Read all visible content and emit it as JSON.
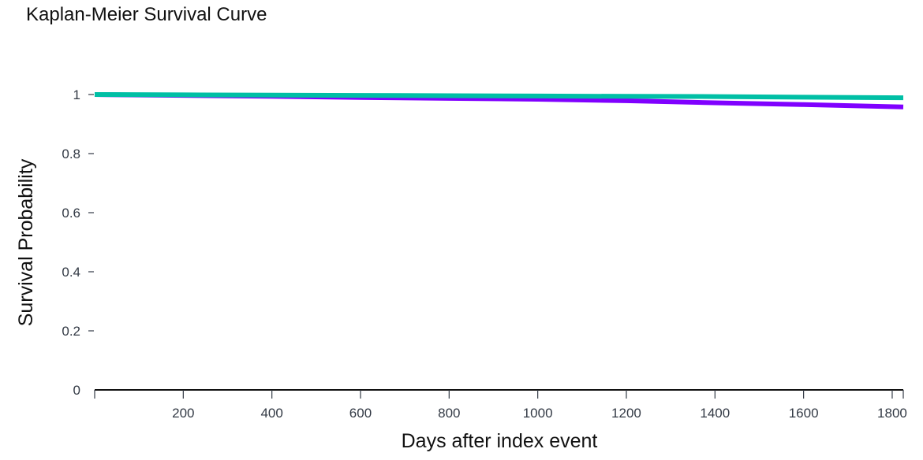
{
  "chart_data": {
    "type": "line",
    "title": "Kaplan-Meier Survival Curve",
    "xlabel": "Days after index event",
    "ylabel": "Survival Probability",
    "xlim": [
      0,
      1825
    ],
    "ylim": [
      0,
      1
    ],
    "x_ticks": [
      200,
      400,
      600,
      800,
      1000,
      1200,
      1400,
      1600,
      1800
    ],
    "y_ticks": [
      0,
      0.2,
      0.4,
      0.6,
      0.8,
      1
    ],
    "y_tick_labels": [
      "0",
      "0.2",
      "0.4",
      "0.6",
      "0.8",
      "1"
    ],
    "grid": false,
    "legend": "none",
    "series": [
      {
        "color": "#8000ff",
        "x": [
          0,
          200,
          400,
          600,
          800,
          1000,
          1200,
          1400,
          1600,
          1825
        ],
        "y": [
          1.0,
          0.997,
          0.994,
          0.99,
          0.987,
          0.984,
          0.979,
          0.972,
          0.966,
          0.958
        ]
      },
      {
        "color": "#00bfa5",
        "x": [
          0,
          200,
          400,
          600,
          800,
          1000,
          1200,
          1400,
          1600,
          1825
        ],
        "y": [
          1.0,
          0.999,
          0.998,
          0.997,
          0.996,
          0.995,
          0.994,
          0.993,
          0.991,
          0.989
        ]
      }
    ]
  }
}
